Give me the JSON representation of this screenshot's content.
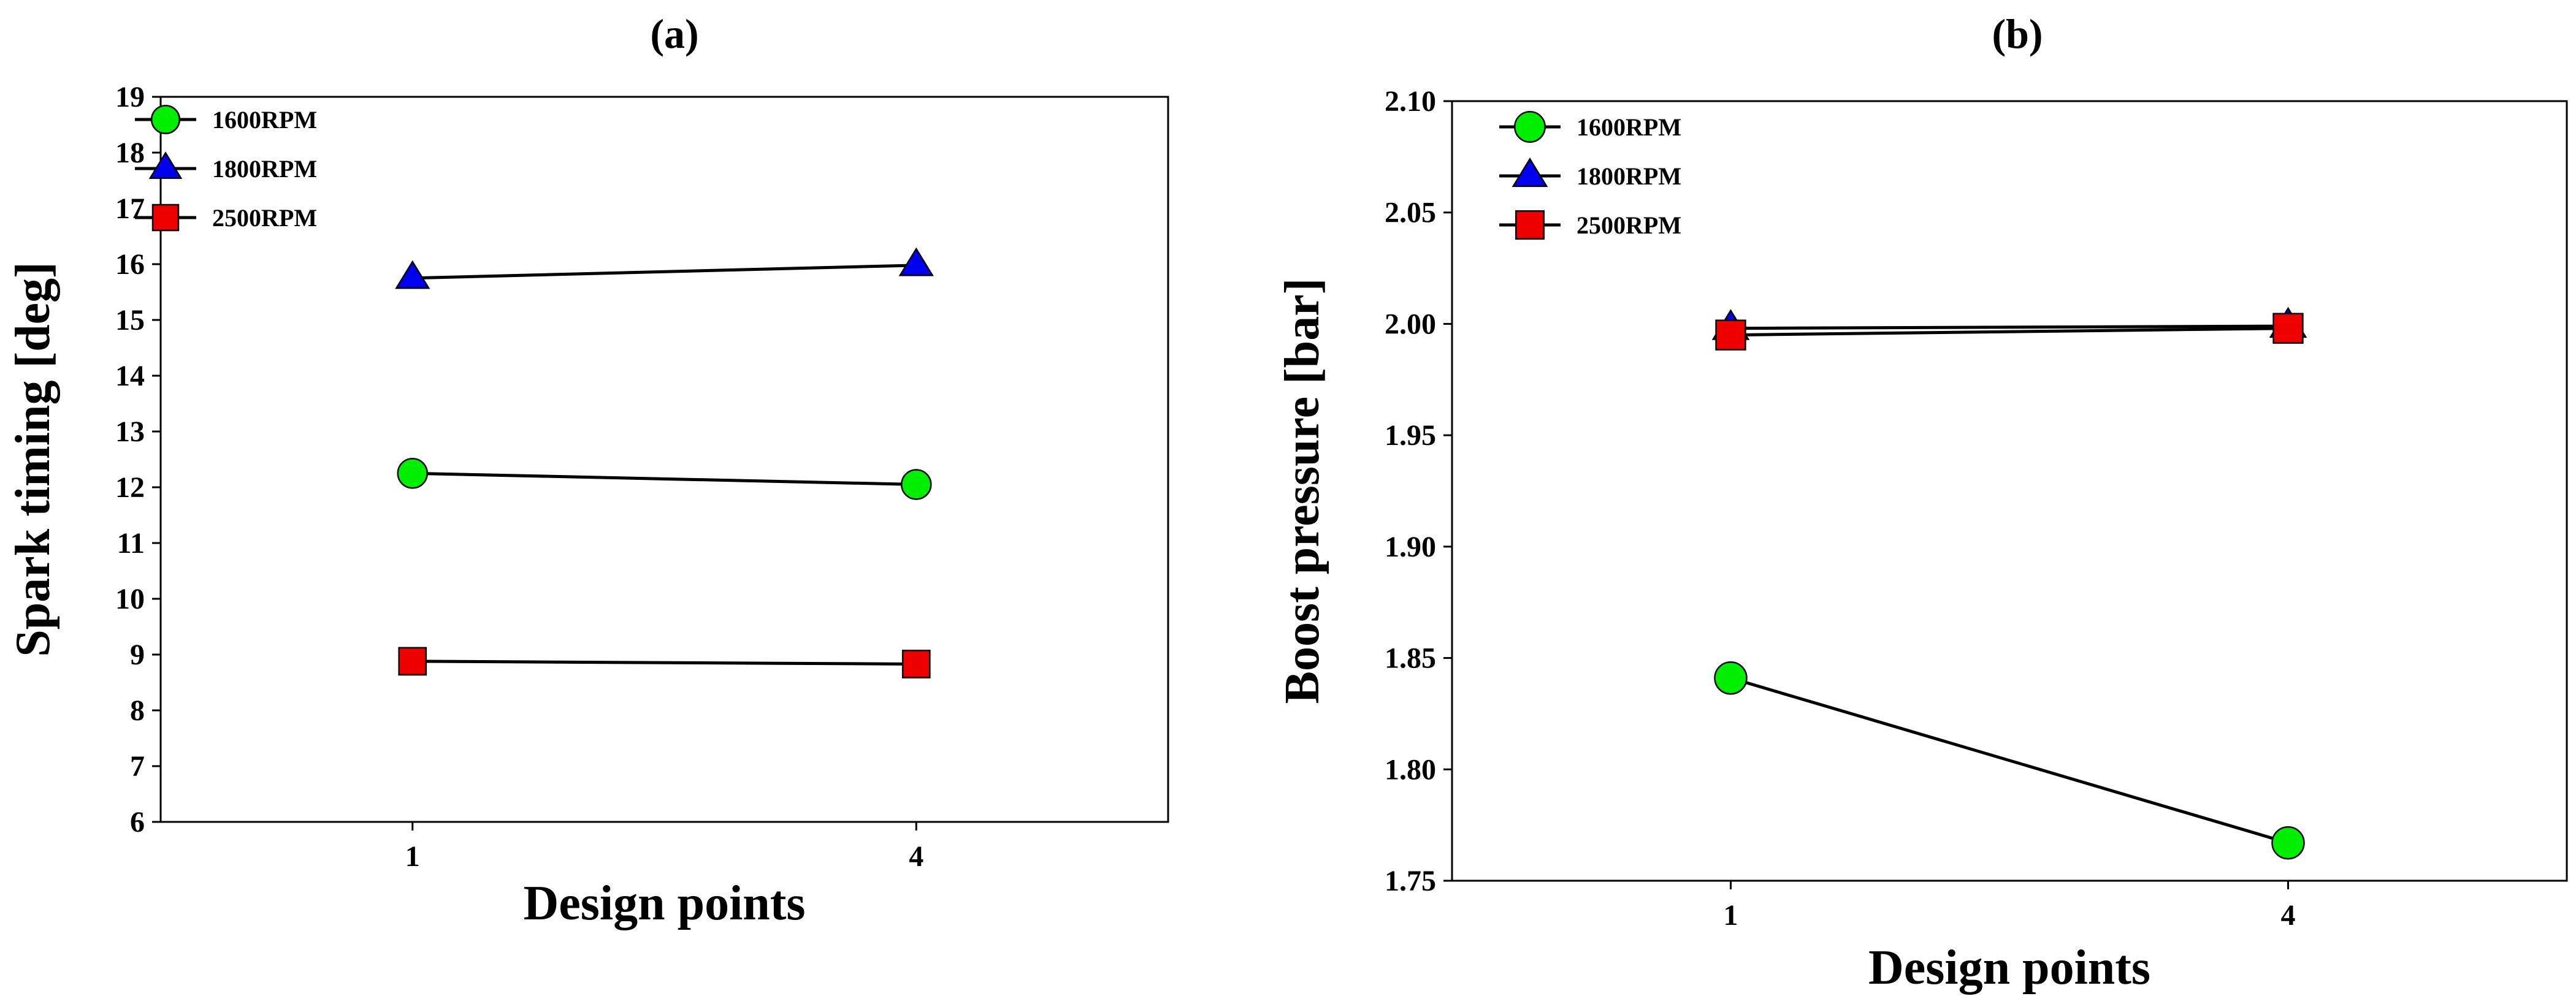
{
  "chart_data": [
    {
      "type": "line",
      "panel_label": "(a)",
      "xlabel": "Design points",
      "ylabel": "Spark timing [deg]",
      "x_ticks": [
        1,
        4
      ],
      "xlim": [
        -0.5,
        5.5
      ],
      "ylim": [
        6,
        19
      ],
      "y_ticks": [
        6,
        7,
        8,
        9,
        10,
        11,
        12,
        13,
        14,
        15,
        16,
        17,
        18,
        19
      ],
      "legend_position": "top-left",
      "grid": false,
      "series": [
        {
          "name": "1600RPM",
          "marker": "circle",
          "color": "#00ee00",
          "x": [
            1,
            4
          ],
          "y": [
            12.25,
            12.05
          ]
        },
        {
          "name": "1800RPM",
          "marker": "triangle",
          "color": "#0000ee",
          "x": [
            1,
            4
          ],
          "y": [
            15.75,
            15.98
          ]
        },
        {
          "name": "2500RPM",
          "marker": "square",
          "color": "#ee0000",
          "x": [
            1,
            4
          ],
          "y": [
            8.88,
            8.83
          ]
        }
      ]
    },
    {
      "type": "line",
      "panel_label": "(b)",
      "xlabel": "Design points",
      "ylabel": "Boost pressure [bar]",
      "x_ticks": [
        1,
        4
      ],
      "xlim": [
        -0.5,
        5.5
      ],
      "ylim": [
        1.75,
        2.1
      ],
      "y_ticks": [
        1.75,
        1.8,
        1.85,
        1.9,
        1.95,
        2.0,
        2.05,
        2.1
      ],
      "y_tick_labels": [
        "1.75",
        "1.80",
        "1.85",
        "1.90",
        "1.95",
        "2.00",
        "2.05",
        "2.10"
      ],
      "legend_position": "top-left",
      "grid": false,
      "series": [
        {
          "name": "1600RPM",
          "marker": "circle",
          "color": "#00ee00",
          "x": [
            1,
            4
          ],
          "y": [
            1.841,
            1.767
          ]
        },
        {
          "name": "1800RPM",
          "marker": "triangle",
          "color": "#0000ee",
          "x": [
            1,
            4
          ],
          "y": [
            1.998,
            1.999
          ]
        },
        {
          "name": "2500RPM",
          "marker": "square",
          "color": "#ee0000",
          "x": [
            1,
            4
          ],
          "y": [
            1.995,
            1.998
          ]
        }
      ]
    }
  ]
}
